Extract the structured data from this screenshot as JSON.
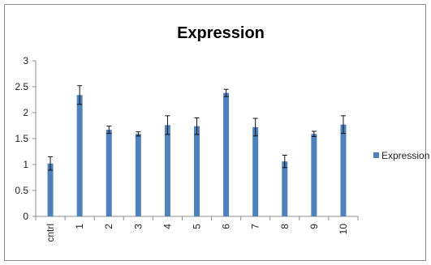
{
  "chart_data": {
    "type": "bar",
    "title": "Expression",
    "xlabel": "",
    "ylabel": "",
    "categories": [
      "cntrl",
      "1",
      "2",
      "3",
      "4",
      "5",
      "6",
      "7",
      "8",
      "9",
      "10"
    ],
    "series": [
      {
        "name": "Expression",
        "color": "#4f81bd",
        "values": [
          1.02,
          2.34,
          1.67,
          1.59,
          1.76,
          1.74,
          2.38,
          1.72,
          1.06,
          1.59,
          1.77
        ],
        "errors": [
          0.13,
          0.18,
          0.07,
          0.04,
          0.18,
          0.16,
          0.07,
          0.17,
          0.12,
          0.05,
          0.17
        ]
      }
    ],
    "ylim": [
      0,
      3
    ],
    "yticks": [
      "0",
      "0.5",
      "1",
      "1.5",
      "2",
      "2.5",
      "3"
    ],
    "grid": false,
    "legend_position": "right"
  }
}
